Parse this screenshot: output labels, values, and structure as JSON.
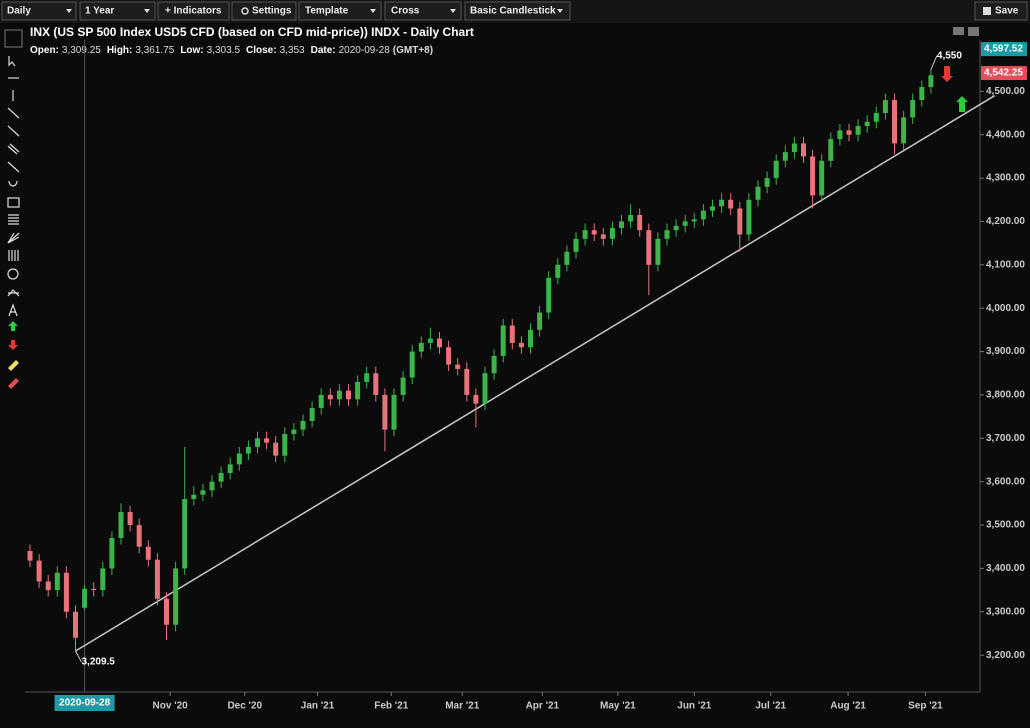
{
  "toolbar": {
    "interval": "Daily",
    "range": "1 Year",
    "indicators": "+ Indicators",
    "settings": "Settings",
    "template": "Template",
    "cursor": "Cross",
    "style": "Basic Candlestick",
    "save": "Save"
  },
  "chart_data": {
    "type": "candlestick",
    "title": "INX (US SP 500 Index USD5 CFD (based on CFD mid-price)) INDX - Daily Chart",
    "open": [
      3440,
      3418,
      3370,
      3350,
      3390,
      3300,
      3309.25,
      3353,
      3350,
      3400,
      3470,
      3530,
      3500,
      3450,
      3420,
      3330,
      3270,
      3400,
      3560,
      3570,
      3580,
      3600,
      3620,
      3640,
      3665,
      3680,
      3700,
      3690,
      3660,
      3710,
      3720,
      3740,
      3770,
      3800,
      3790,
      3810,
      3790,
      3830,
      3850,
      3800,
      3720,
      3800,
      3840,
      3900,
      3920,
      3930,
      3910,
      3870,
      3860,
      3800,
      3780,
      3850,
      3890,
      3960,
      3920,
      3910,
      3950,
      3990,
      4070,
      4100,
      4130,
      4160,
      4180,
      4170,
      4160,
      4185,
      4200,
      4215,
      4180,
      4100,
      4160,
      4180,
      4190,
      4200,
      4205,
      4225,
      4235,
      4250,
      4230,
      4170,
      4250,
      4280,
      4300,
      4340,
      4360,
      4380,
      4350,
      4260,
      4340,
      4390,
      4410,
      4400,
      4420,
      4430,
      4450,
      4480,
      4380,
      4440,
      4480,
      4510
    ],
    "high": [
      3455,
      3433,
      3385,
      3405,
      3405,
      3315,
      3361.75,
      3368,
      3415,
      3485,
      3550,
      3545,
      3515,
      3465,
      3435,
      3345,
      3415,
      3680,
      3590,
      3595,
      3615,
      3635,
      3655,
      3680,
      3695,
      3715,
      3715,
      3705,
      3725,
      3735,
      3755,
      3785,
      3815,
      3815,
      3825,
      3825,
      3845,
      3865,
      3865,
      3815,
      3815,
      3855,
      3915,
      3935,
      3955,
      3945,
      3925,
      3885,
      3875,
      3815,
      3865,
      3905,
      3975,
      3975,
      3935,
      3965,
      4005,
      4085,
      4115,
      4145,
      4175,
      4195,
      4195,
      4185,
      4200,
      4215,
      4240,
      4230,
      4195,
      4175,
      4195,
      4205,
      4215,
      4220,
      4240,
      4250,
      4265,
      4265,
      4245,
      4265,
      4295,
      4315,
      4355,
      4375,
      4395,
      4395,
      4365,
      4355,
      4405,
      4425,
      4425,
      4435,
      4445,
      4465,
      4495,
      4495,
      4455,
      4495,
      4525,
      4550
    ],
    "low": [
      3403,
      3355,
      3335,
      3335,
      3285,
      3209.5,
      3303.5,
      3335,
      3335,
      3385,
      3455,
      3485,
      3435,
      3405,
      3315,
      3235,
      3255,
      3385,
      3545,
      3555,
      3565,
      3585,
      3605,
      3625,
      3650,
      3665,
      3675,
      3645,
      3645,
      3695,
      3705,
      3725,
      3755,
      3775,
      3775,
      3775,
      3775,
      3815,
      3785,
      3670,
      3705,
      3785,
      3825,
      3885,
      3905,
      3895,
      3855,
      3845,
      3785,
      3725,
      3765,
      3835,
      3875,
      3905,
      3895,
      3895,
      3935,
      3975,
      4055,
      4085,
      4115,
      4145,
      4155,
      4145,
      4145,
      4170,
      4185,
      4165,
      4030,
      4085,
      4145,
      4165,
      4175,
      4185,
      4190,
      4210,
      4220,
      4215,
      4130,
      4155,
      4235,
      4265,
      4285,
      4325,
      4345,
      4335,
      4230,
      4245,
      4325,
      4375,
      4385,
      4385,
      4405,
      4415,
      4435,
      4355,
      4365,
      4425,
      4465,
      4495
    ],
    "close": [
      3418,
      3370,
      3350,
      3390,
      3300,
      3240,
      3353,
      3350,
      3400,
      3470,
      3530,
      3500,
      3450,
      3420,
      3330,
      3270,
      3400,
      3560,
      3570,
      3580,
      3600,
      3620,
      3640,
      3665,
      3680,
      3700,
      3690,
      3660,
      3710,
      3720,
      3740,
      3770,
      3800,
      3790,
      3810,
      3790,
      3830,
      3850,
      3800,
      3720,
      3800,
      3840,
      3900,
      3920,
      3930,
      3910,
      3870,
      3860,
      3800,
      3780,
      3850,
      3890,
      3960,
      3920,
      3910,
      3950,
      3990,
      4070,
      4100,
      4130,
      4160,
      4180,
      4170,
      4160,
      4185,
      4200,
      4215,
      4180,
      4100,
      4160,
      4180,
      4190,
      4200,
      4205,
      4225,
      4235,
      4250,
      4230,
      4170,
      4250,
      4280,
      4300,
      4340,
      4360,
      4380,
      4350,
      4260,
      4340,
      4390,
      4410,
      4400,
      4420,
      4430,
      4450,
      4480,
      4380,
      4440,
      4480,
      4510,
      4537
    ],
    "up_color": "#3bb54a",
    "down_color": "#e9737b",
    "ylim": [
      3115,
      4600
    ],
    "yticks": [
      {
        "value": 3200,
        "label": "3,200.00"
      },
      {
        "value": 3300,
        "label": "3,300.00"
      },
      {
        "value": 3400,
        "label": "3,400.00"
      },
      {
        "value": 3500,
        "label": "3,500.00"
      },
      {
        "value": 3600,
        "label": "3,600.00"
      },
      {
        "value": 3700,
        "label": "3,700.00"
      },
      {
        "value": 3800,
        "label": "3,800.00"
      },
      {
        "value": 3900,
        "label": "3,900.00"
      },
      {
        "value": 4000,
        "label": "4,000.00"
      },
      {
        "value": 4100,
        "label": "4,100.00"
      },
      {
        "value": 4200,
        "label": "4,200.00"
      },
      {
        "value": 4300,
        "label": "4,300.00"
      },
      {
        "value": 4400,
        "label": "4,400.00"
      },
      {
        "value": 4500,
        "label": "4,500.00"
      }
    ],
    "xticks": [
      {
        "value": 15.4,
        "label": "Nov '20"
      },
      {
        "value": 23.6,
        "label": "Dec '20"
      },
      {
        "value": 31.6,
        "label": "Jan '21"
      },
      {
        "value": 39.7,
        "label": "Feb '21"
      },
      {
        "value": 47.5,
        "label": "Mar '21"
      },
      {
        "value": 56.3,
        "label": "Apr '21"
      },
      {
        "value": 64.6,
        "label": "May '21"
      },
      {
        "value": 73,
        "label": "Jun '21"
      },
      {
        "value": 81.4,
        "label": "Jul '21"
      },
      {
        "value": 89.9,
        "label": "Aug '21"
      },
      {
        "value": 98.4,
        "label": "Sep '21"
      }
    ],
    "crosshair": {
      "date": "2020-09-28",
      "date_label": "Date:",
      "timezone": "(GMT+8)",
      "fields": [
        {
          "name": "Open:",
          "value": 3309.25,
          "label": "3,309.25"
        },
        {
          "name": "High:",
          "value": 3361.75,
          "label": "3,361.75"
        },
        {
          "name": "Low:",
          "value": 3303.5,
          "label": "3,303.5"
        },
        {
          "name": "Close:",
          "value": 3353,
          "label": "3,353"
        }
      ]
    },
    "annotations": [
      {
        "value": 3209.5,
        "label": "3,209.5"
      },
      {
        "value": 4550,
        "label": "4,550"
      }
    ],
    "price_labels": [
      {
        "value": 4597.52,
        "label": "4,597.52",
        "color": "#1e9aa5"
      },
      {
        "value": 4542.25,
        "label": "4,542.25",
        "color": "#e0505a"
      }
    ],
    "trendline": {
      "x": [
        5,
        106
      ],
      "y": [
        3209.5,
        4490
      ],
      "color": "#c8c8c8"
    }
  }
}
